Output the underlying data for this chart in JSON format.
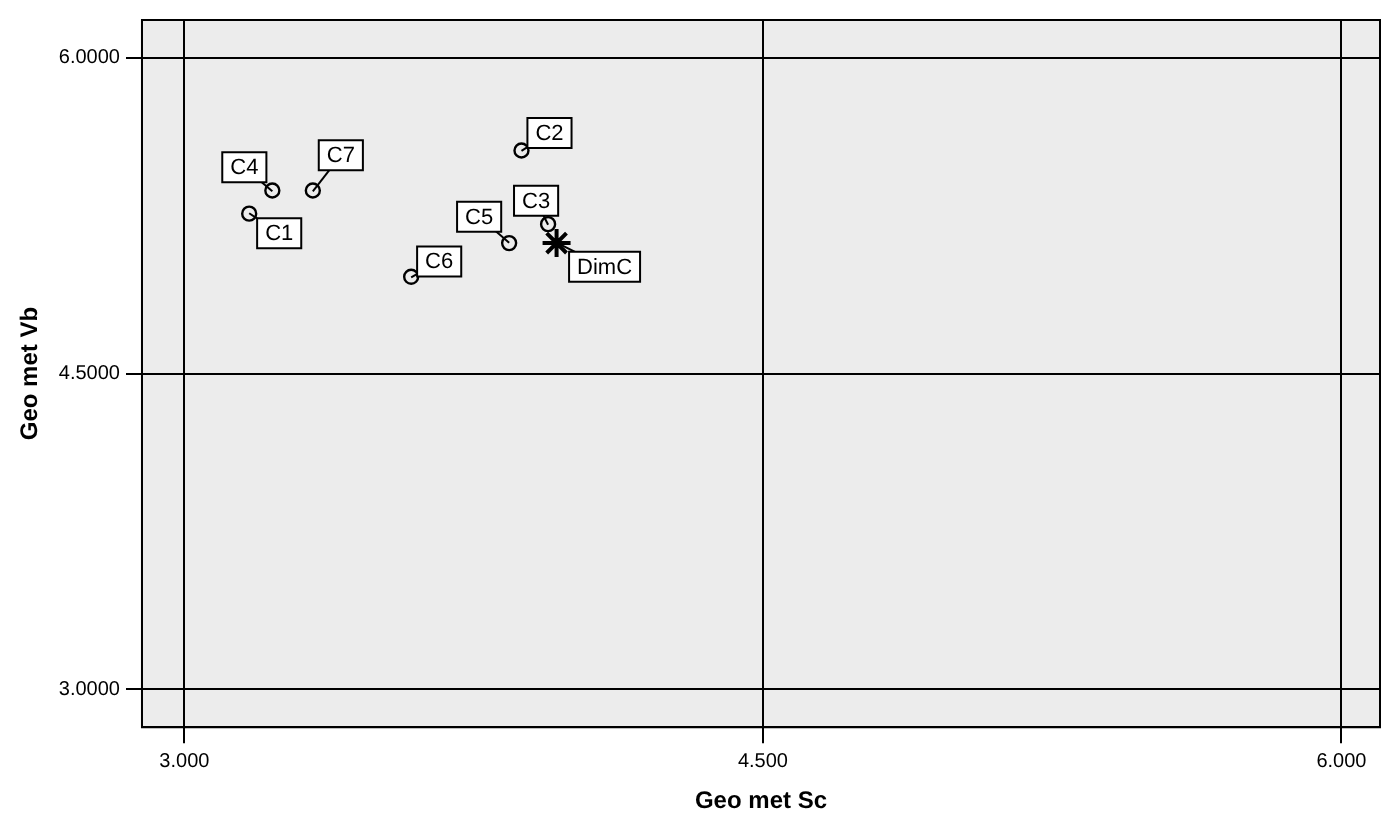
{
  "chart_data": {
    "type": "scatter",
    "xlabel": "Geo met Sc",
    "ylabel": "Geo met Vb",
    "xlim": [
      2.89,
      6.1
    ],
    "ylim": [
      2.82,
      6.18
    ],
    "xticks": [
      {
        "value": 3,
        "label": "3.000"
      },
      {
        "value": 4.5,
        "label": "4.500"
      },
      {
        "value": 6,
        "label": "6.000"
      }
    ],
    "yticks": [
      {
        "value": 3,
        "label": "3.0000"
      },
      {
        "value": 4.5,
        "label": "4.5000"
      },
      {
        "value": 6,
        "label": "6.0000"
      }
    ],
    "grid": true,
    "series": [
      {
        "color": "#000000",
        "marker": "circle",
        "x": [
          3.168,
          3.874,
          3.943,
          3.228,
          3.842,
          3.588,
          3.333
        ],
        "values": [
          5.26,
          5.56,
          5.21,
          5.37,
          5.12,
          4.96,
          5.37
        ]
      },
      {
        "color": "#000000",
        "marker": "cross",
        "x": [
          3.965
        ],
        "values": [
          5.12
        ]
      }
    ],
    "annotations": [
      {
        "text": "C1",
        "x": 3.168,
        "y": 5.262
      },
      {
        "text": "C2",
        "x": 3.874,
        "y": 5.558
      },
      {
        "text": "C3",
        "x": 3.943,
        "y": 5.207
      },
      {
        "text": "C4",
        "x": 3.228,
        "y": 5.366
      },
      {
        "text": "C5",
        "x": 3.842,
        "y": 5.122
      },
      {
        "text": "C6",
        "x": 3.588,
        "y": 4.957
      },
      {
        "text": "C7",
        "x": 3.333,
        "y": 5.366
      },
      {
        "text": "DimC",
        "x": 3.965,
        "y": 5.122
      }
    ]
  }
}
